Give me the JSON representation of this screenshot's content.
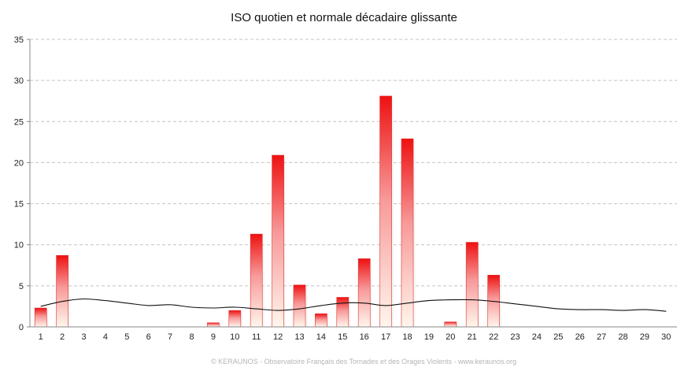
{
  "chart_data": {
    "type": "bar",
    "title": "ISO quotien et normale décadaire glissante",
    "xlabel": "",
    "ylabel": "",
    "categories": [
      "1",
      "2",
      "3",
      "4",
      "5",
      "6",
      "7",
      "8",
      "9",
      "10",
      "11",
      "12",
      "13",
      "14",
      "15",
      "16",
      "17",
      "18",
      "19",
      "20",
      "21",
      "22",
      "23",
      "24",
      "25",
      "26",
      "27",
      "28",
      "29",
      "30"
    ],
    "ylim": [
      0,
      35
    ],
    "yticks": [
      0,
      5,
      10,
      15,
      20,
      25,
      30,
      35
    ],
    "grid": true,
    "legend": "none",
    "series": [
      {
        "type": "bar",
        "values": [
          2.3,
          8.7,
          0,
          0,
          0,
          0,
          0,
          0,
          0.5,
          2.0,
          11.3,
          20.9,
          5.1,
          1.6,
          3.6,
          8.3,
          28.1,
          22.9,
          0,
          0.6,
          10.3,
          6.3,
          0,
          0,
          0,
          0,
          0,
          0,
          0,
          0
        ],
        "color": "#ee1111"
      },
      {
        "type": "line",
        "values": [
          2.5,
          3.1,
          3.4,
          3.2,
          2.9,
          2.6,
          2.7,
          2.4,
          2.3,
          2.4,
          2.2,
          2.0,
          2.2,
          2.6,
          2.9,
          2.9,
          2.6,
          2.9,
          3.2,
          3.3,
          3.3,
          3.1,
          2.8,
          2.5,
          2.2,
          2.1,
          2.1,
          2.0,
          2.1,
          1.9
        ],
        "color": "#111111"
      }
    ]
  },
  "footer": "© KERAUNOS - Observatoire Français des Tornades et des Orages Violents - www.keraunos.org"
}
